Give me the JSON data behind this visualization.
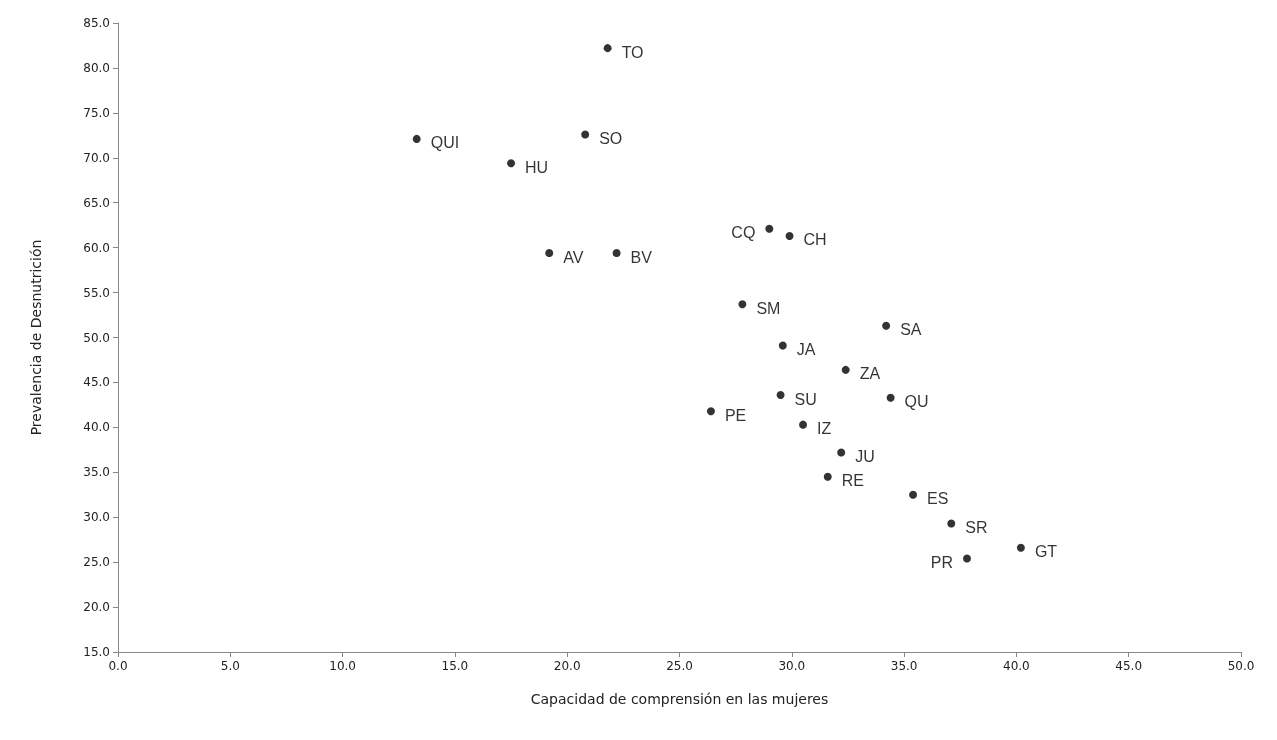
{
  "chart_data": {
    "type": "scatter",
    "xlabel": "Capacidad de comprensión en las mujeres",
    "ylabel": "Prevalencia de Desnutrición",
    "x": [
      21.8,
      13.3,
      20.8,
      17.5,
      29.0,
      29.9,
      19.2,
      22.2,
      27.8,
      34.2,
      29.6,
      32.4,
      29.5,
      34.4,
      26.4,
      30.5,
      32.2,
      31.6,
      35.4,
      37.1,
      40.2,
      37.8
    ],
    "values": [
      82.2,
      72.1,
      72.6,
      69.4,
      62.1,
      61.3,
      59.4,
      59.4,
      53.7,
      51.3,
      49.1,
      46.4,
      43.6,
      43.3,
      41.8,
      40.3,
      37.2,
      34.5,
      32.5,
      29.3,
      26.6,
      25.4
    ],
    "value_labels": [
      "TO",
      "QUI",
      "SO",
      "HU",
      "CQ",
      "CH",
      "AV",
      "BV",
      "SM",
      "SA",
      "JA",
      "ZA",
      "SU",
      "QU",
      "PE",
      "IZ",
      "JU",
      "RE",
      "ES",
      "SR",
      "GT",
      "PR"
    ],
    "color": "#000000",
    "marker": "circle",
    "grid": false,
    "xlim": [
      0,
      50
    ],
    "xticks": [
      {
        "value": 0,
        "label": "0.0"
      },
      {
        "value": 5,
        "label": "5.0"
      },
      {
        "value": 10,
        "label": "10.0"
      },
      {
        "value": 15,
        "label": "15.0"
      },
      {
        "value": 20,
        "label": "20.0"
      },
      {
        "value": 25,
        "label": "25.0"
      },
      {
        "value": 30,
        "label": "30.0"
      },
      {
        "value": 35,
        "label": "35.0"
      },
      {
        "value": 40,
        "label": "40.0"
      },
      {
        "value": 45,
        "label": "45.0"
      },
      {
        "value": 50,
        "label": "50.0"
      }
    ],
    "ylim": [
      15,
      85
    ],
    "yticks": [
      {
        "value": 15,
        "label": "15.0"
      },
      {
        "value": 20,
        "label": "20.0"
      },
      {
        "value": 25,
        "label": "25.0"
      },
      {
        "value": 30,
        "label": "30.0"
      },
      {
        "value": 35,
        "label": "35.0"
      },
      {
        "value": 40,
        "label": "40.0"
      },
      {
        "value": 45,
        "label": "45.0"
      },
      {
        "value": 50,
        "label": "50.0"
      },
      {
        "value": 55,
        "label": "55.0"
      },
      {
        "value": 60,
        "label": "60.0"
      },
      {
        "value": 65,
        "label": "65.0"
      },
      {
        "value": 70,
        "label": "70.0"
      },
      {
        "value": 75,
        "label": "75.0"
      },
      {
        "value": 80,
        "label": "80.0"
      },
      {
        "value": 85,
        "label": "85.0"
      }
    ]
  }
}
